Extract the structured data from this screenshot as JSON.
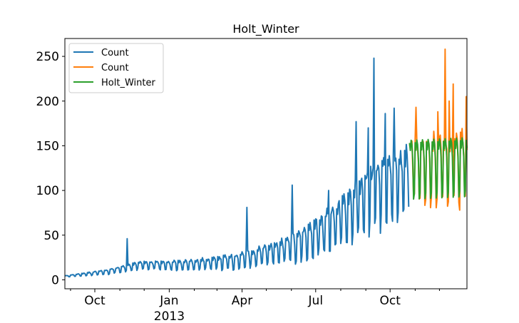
{
  "chart_data": {
    "type": "line",
    "title": "Holt_Winter",
    "xlabel": "",
    "ylabel": "",
    "xlim": [
      "2012-08-25",
      "2014-01-04"
    ],
    "ylim": [
      -10,
      270
    ],
    "y_ticks": [
      0,
      50,
      100,
      150,
      200,
      250
    ],
    "x_ticks": [
      {
        "date": "2012-10-01",
        "label": "Oct",
        "sublabel": ""
      },
      {
        "date": "2013-01-01",
        "label": "Jan",
        "sublabel": "2013"
      },
      {
        "date": "2013-04-01",
        "label": "Apr",
        "sublabel": ""
      },
      {
        "date": "2013-07-01",
        "label": "Jul",
        "sublabel": ""
      },
      {
        "date": "2013-10-01",
        "label": "Oct",
        "sublabel": ""
      }
    ],
    "minor_tick_dates": [
      "2012-09-01",
      "2012-11-01",
      "2012-12-01",
      "2013-02-01",
      "2013-03-01",
      "2013-05-01",
      "2013-06-01",
      "2013-08-01",
      "2013-09-01",
      "2013-11-01",
      "2013-12-01"
    ],
    "grid": false,
    "legend_position": "top-left",
    "series": [
      {
        "name": "Count",
        "color": "#1f77b4",
        "start": "2012-08-25",
        "end": "2013-10-24",
        "trend": [
          [
            0,
            4
          ],
          [
            0.12,
            9
          ],
          [
            0.22,
            17
          ],
          [
            0.35,
            17
          ],
          [
            0.5,
            22
          ],
          [
            0.62,
            33
          ],
          [
            0.72,
            48
          ],
          [
            0.8,
            68
          ],
          [
            0.88,
            95
          ],
          [
            1.0,
            118
          ]
        ],
        "amplitude": [
          [
            0,
            1
          ],
          [
            0.2,
            5
          ],
          [
            0.4,
            8
          ],
          [
            0.6,
            14
          ],
          [
            0.75,
            28
          ],
          [
            0.9,
            45
          ],
          [
            1.0,
            45
          ]
        ],
        "spikes": [
          {
            "date": "2012-11-10",
            "value": 46
          },
          {
            "date": "2013-04-07",
            "value": 81
          },
          {
            "date": "2013-06-02",
            "value": 106
          },
          {
            "date": "2013-07-17",
            "value": 100
          },
          {
            "date": "2013-08-20",
            "value": 177
          },
          {
            "date": "2013-09-04",
            "value": 170
          },
          {
            "date": "2013-09-11",
            "value": 248
          },
          {
            "date": "2013-09-25",
            "value": 186
          },
          {
            "date": "2013-10-06",
            "value": 192
          }
        ]
      },
      {
        "name": "Count",
        "color": "#ff7f0e",
        "start": "2013-10-25",
        "end": "2014-01-04",
        "trend": [
          [
            0,
            128
          ],
          [
            0.5,
            132
          ],
          [
            1.0,
            135
          ]
        ],
        "amplitude": [
          [
            0,
            40
          ],
          [
            0.5,
            48
          ],
          [
            1.0,
            45
          ]
        ],
        "spikes": [
          {
            "date": "2013-11-02",
            "value": 193
          },
          {
            "date": "2013-11-29",
            "value": 188
          },
          {
            "date": "2013-12-08",
            "value": 258
          },
          {
            "date": "2013-12-13",
            "value": 200
          },
          {
            "date": "2013-12-18",
            "value": 219
          },
          {
            "date": "2013-12-26",
            "value": 78
          },
          {
            "date": "2014-01-03",
            "value": 205
          }
        ]
      },
      {
        "name": "Holt_Winter",
        "color": "#2ca02c",
        "start": "2013-10-25",
        "end": "2014-01-04",
        "trend": [
          [
            0,
            130
          ],
          [
            1.0,
            133
          ]
        ],
        "amplitude": [
          [
            0,
            42
          ],
          [
            1.0,
            42
          ]
        ],
        "spikes": []
      }
    ]
  }
}
